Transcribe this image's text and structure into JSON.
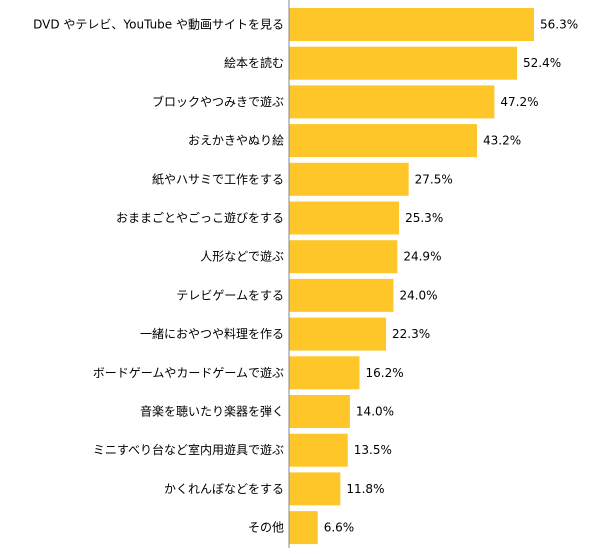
{
  "chart_data": {
    "type": "bar",
    "orientation": "horizontal",
    "title": "",
    "xlabel": "",
    "ylabel": "",
    "xlim": [
      0,
      64
    ],
    "grid": false,
    "legend": "none",
    "bar_color": "#FFC629",
    "axis_color": "#888888",
    "value_suffix": "%",
    "categories": [
      "DVD やテレビ、YouTube や動画サイトを見る",
      "絵本を読む",
      "ブロックやつみきで遊ぶ",
      "おえかきやぬり絵",
      "紙やハサミで工作をする",
      "おままごとやごっこ遊びをする",
      "人形などで遊ぶ",
      "テレビゲームをする",
      "一緒におやつや料理を作る",
      "ボードゲームやカードゲームで遊ぶ",
      "音楽を聴いたり楽器を弾く",
      "ミニすべり台など室内用遊具で遊ぶ",
      "かくれんぼなどをする",
      "その他"
    ],
    "values": [
      56.3,
      52.4,
      47.2,
      43.2,
      27.5,
      25.3,
      24.9,
      24.0,
      22.3,
      16.2,
      14.0,
      13.5,
      11.8,
      6.6
    ],
    "value_labels": [
      "56.3%",
      "52.4%",
      "47.2%",
      "43.2%",
      "27.5%",
      "25.3%",
      "24.9%",
      "24.0%",
      "22.3%",
      "16.2%",
      "14.0%",
      "13.5%",
      "11.8%",
      "6.6%"
    ]
  }
}
